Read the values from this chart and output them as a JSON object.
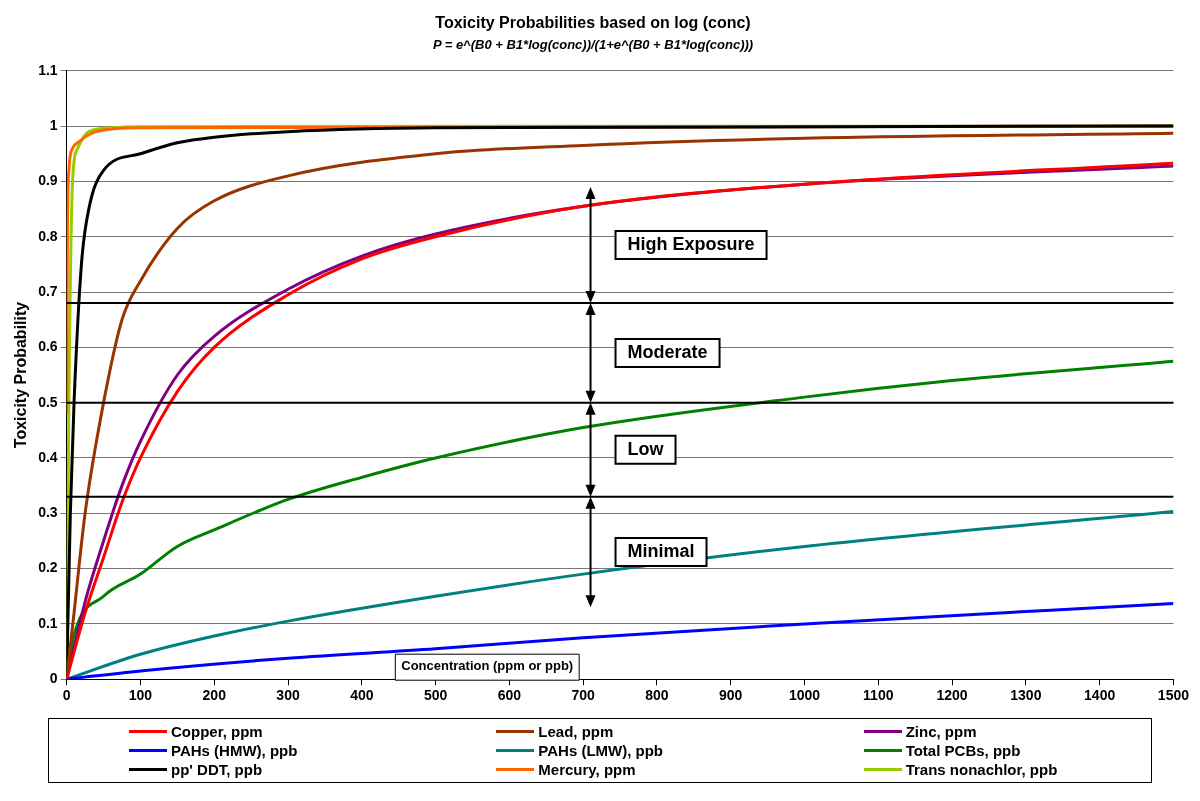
{
  "chart_data": {
    "type": "line",
    "title": "Toxicity Probabilities based on log (conc)",
    "subtitle": "P = e^(B0 + B1*log(conc))/(1+e^(B0 + B1*log(conc)))",
    "xlabel": "Concentration (ppm or ppb)",
    "ylabel": "Toxicity Probability",
    "xlim": [
      0,
      1500
    ],
    "xticks": [
      0,
      100,
      200,
      300,
      400,
      500,
      600,
      700,
      800,
      900,
      1000,
      1100,
      1200,
      1300,
      1400,
      1500
    ],
    "ylim": [
      0,
      1.1
    ],
    "yticks": [
      0,
      0.1,
      0.2,
      0.3,
      0.4,
      0.5,
      0.6,
      0.7,
      0.8,
      0.9,
      1,
      1.1
    ],
    "grid": "y",
    "legend": "bottom",
    "marker": "none",
    "line_style": "solid",
    "series": [
      {
        "name": "Copper, ppm",
        "color": "#ff0000",
        "x": [
          0,
          25,
          50,
          75,
          100,
          150,
          200,
          300,
          400,
          500,
          700,
          1000,
          1500
        ],
        "values": [
          0,
          0.12,
          0.22,
          0.32,
          0.4,
          0.52,
          0.6,
          0.695,
          0.76,
          0.8,
          0.855,
          0.895,
          0.933
        ]
      },
      {
        "name": "Lead, ppm",
        "color": "#993300",
        "x": [
          0,
          10,
          25,
          50,
          75,
          100,
          150,
          200,
          300,
          500,
          700,
          1000,
          1500
        ],
        "values": [
          0,
          0.12,
          0.3,
          0.5,
          0.65,
          0.72,
          0.815,
          0.865,
          0.91,
          0.95,
          0.965,
          0.978,
          0.987
        ]
      },
      {
        "name": "Zinc, ppm",
        "color": "#800080",
        "x": [
          0,
          25,
          50,
          75,
          100,
          150,
          200,
          300,
          400,
          500,
          700,
          1000,
          1500
        ],
        "values": [
          0,
          0.14,
          0.25,
          0.35,
          0.43,
          0.55,
          0.62,
          0.705,
          0.765,
          0.805,
          0.855,
          0.895,
          0.928
        ]
      },
      {
        "name": "PAHs (HMW), ppb",
        "color": "#0000ff",
        "x": [
          0,
          100,
          300,
          500,
          700,
          1000,
          1500
        ],
        "values": [
          0,
          0.015,
          0.038,
          0.055,
          0.075,
          0.1,
          0.137
        ]
      },
      {
        "name": "PAHs (LMW), ppb",
        "color": "#008080",
        "x": [
          0,
          100,
          200,
          300,
          500,
          700,
          1000,
          1500
        ],
        "values": [
          0,
          0.045,
          0.078,
          0.105,
          0.15,
          0.19,
          0.24,
          0.303
        ]
      },
      {
        "name": "Total PCBs, ppb",
        "color": "#008000",
        "x": [
          0,
          10,
          50,
          100,
          150,
          200,
          300,
          400,
          500,
          700,
          1000,
          1200,
          1500
        ],
        "values": [
          0,
          0.08,
          0.15,
          0.19,
          0.24,
          0.27,
          0.325,
          0.365,
          0.4,
          0.455,
          0.51,
          0.54,
          0.575
        ]
      },
      {
        "name": "pp' DDT, ppb",
        "color": "#000000",
        "x": [
          0,
          5,
          10,
          20,
          30,
          50,
          100,
          150,
          200,
          300,
          500,
          1500
        ],
        "values": [
          0,
          0.3,
          0.5,
          0.75,
          0.85,
          0.92,
          0.95,
          0.97,
          0.98,
          0.99,
          0.997,
          1
        ]
      },
      {
        "name": "Mercury, ppm",
        "color": "#ff6600",
        "x": [
          0,
          1,
          3,
          8,
          15,
          40,
          100,
          1500
        ],
        "values": [
          0.48,
          0.8,
          0.92,
          0.96,
          0.97,
          0.99,
          0.997,
          1
        ]
      },
      {
        "name": "Trans nonachlor, ppb",
        "color": "#99cc00",
        "x": [
          0,
          3,
          8,
          15,
          30,
          60,
          100,
          1500
        ],
        "values": [
          0,
          0.5,
          0.9,
          0.96,
          0.99,
          0.997,
          0.999,
          1
        ]
      }
    ],
    "ref_lines": [
      {
        "axis": "y",
        "value": 0.68,
        "color": "#000000"
      },
      {
        "axis": "y",
        "value": 0.5,
        "color": "#000000"
      },
      {
        "axis": "y",
        "value": 0.33,
        "color": "#000000"
      }
    ],
    "annotations": [
      "High Exposure",
      "Moderate",
      "Low",
      "Minimal"
    ]
  }
}
